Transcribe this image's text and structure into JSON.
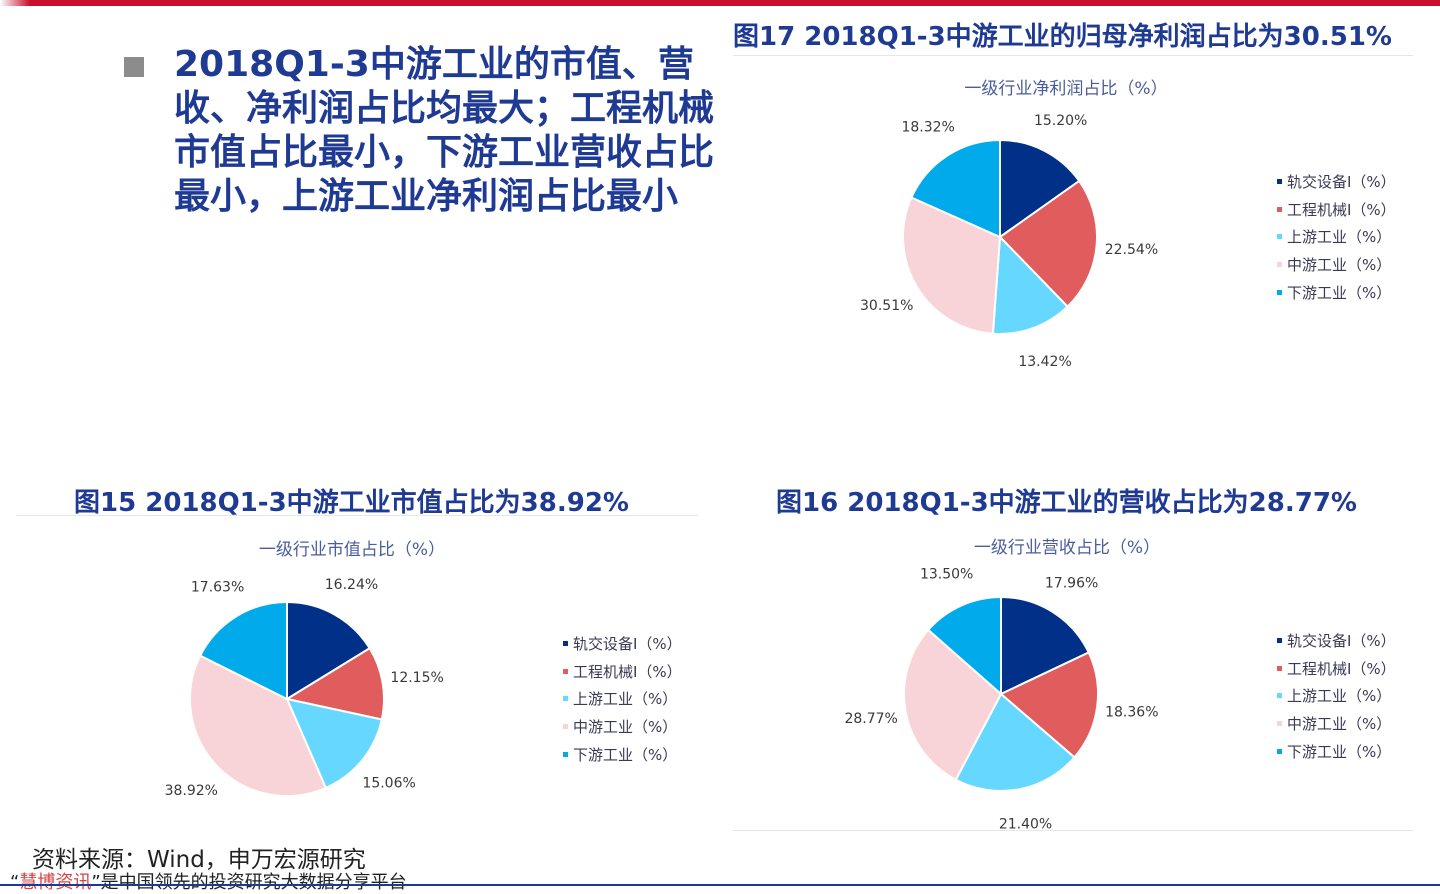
{
  "headline": "2018Q1-3中游工业的市值、营收、净利润占比均最大；工程机械市值占比最小，下游工业营收占比最小，上游工业净利润占比最小",
  "colors": {
    "brand": "#1f3a93",
    "accent_red": "#c8102e",
    "slice_colors": [
      "#003087",
      "#e15d5d",
      "#66d8ff",
      "#f8d4d8",
      "#00aaeb"
    ]
  },
  "figures": {
    "fig17": {
      "title": "图17 2018Q1-3中游工业的归母净利润占比为30.51%",
      "chart_index": 0
    },
    "fig15": {
      "title": "图15 2018Q1-3中游工业市值占比为38.92%",
      "chart_index": 1
    },
    "fig16": {
      "title": "图16 2018Q1-3中游工业的营收占比为28.77%",
      "chart_index": 2
    }
  },
  "chart_data": [
    {
      "type": "pie",
      "title": "一级行业净利润占比（%）",
      "legend_position": "right",
      "categories": [
        "轨交设备Ⅰ（%）",
        "工程机械Ⅰ（%）",
        "上游工业（%）",
        "中游工业（%）",
        "下游工业（%）"
      ],
      "values": [
        15.2,
        22.54,
        13.42,
        30.51,
        18.32
      ],
      "labels": [
        "15.20%",
        "22.54%",
        "13.42%",
        "30.51%",
        "18.32%"
      ]
    },
    {
      "type": "pie",
      "title": "一级行业市值占比（%）",
      "legend_position": "right",
      "categories": [
        "轨交设备Ⅰ（%）",
        "工程机械Ⅰ（%）",
        "上游工业（%）",
        "中游工业（%）",
        "下游工业（%）"
      ],
      "values": [
        16.24,
        12.15,
        15.06,
        38.92,
        17.63
      ],
      "labels": [
        "16.24%",
        "12.15%",
        "15.06%",
        "38.92%",
        "17.63%"
      ]
    },
    {
      "type": "pie",
      "title": "一级行业营收占比（%）",
      "legend_position": "right",
      "categories": [
        "轨交设备Ⅰ（%）",
        "工程机械Ⅰ（%）",
        "上游工业（%）",
        "中游工业（%）",
        "下游工业（%）"
      ],
      "values": [
        17.96,
        18.36,
        21.4,
        28.77,
        13.5
      ],
      "labels": [
        "17.96%",
        "18.36%",
        "21.40%",
        "28.77%",
        "13.50%"
      ]
    }
  ],
  "source": "资料来源：Wind，申万宏源研究",
  "tagline": {
    "open_quote": "“",
    "brand": "慧博资讯",
    "rest": "”是中国领先的投资研究大数据分享平台"
  }
}
